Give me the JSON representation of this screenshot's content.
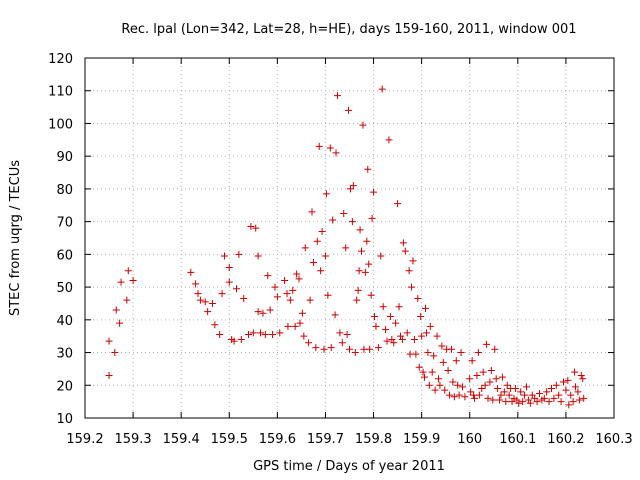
{
  "chart_data": {
    "type": "scatter",
    "title": "Rec. lpal (Lon=342, Lat=28, h=HE), days 159-160, 2011, window 001",
    "xlabel": "GPS time / Days of year 2011",
    "ylabel": "STEC from uqrg / TECUs",
    "xlim": [
      159.2,
      160.3
    ],
    "ylim": [
      10,
      120
    ],
    "xticks": [
      "159.2",
      "159.3",
      "159.4",
      "159.5",
      "159.6",
      "159.7",
      "159.8",
      "159.9",
      "160",
      "160.1",
      "160.2",
      "160.3"
    ],
    "yticks": [
      "10",
      "20",
      "30",
      "40",
      "50",
      "60",
      "70",
      "80",
      "90",
      "100",
      "110",
      "120"
    ],
    "grid": true,
    "marker": "plus",
    "color": "#cc0000",
    "points": [
      [
        159.25,
        23
      ],
      [
        159.25,
        33.5
      ],
      [
        159.262,
        30
      ],
      [
        159.265,
        43
      ],
      [
        159.272,
        39
      ],
      [
        159.275,
        51.5
      ],
      [
        159.287,
        46
      ],
      [
        159.29,
        55
      ],
      [
        159.3,
        52
      ],
      [
        159.42,
        54.5
      ],
      [
        159.43,
        51
      ],
      [
        159.435,
        48
      ],
      [
        159.44,
        46
      ],
      [
        159.45,
        45.5
      ],
      [
        159.455,
        42.5
      ],
      [
        159.465,
        45
      ],
      [
        159.47,
        38.5
      ],
      [
        159.48,
        35.5
      ],
      [
        159.485,
        48
      ],
      [
        159.49,
        59.5
      ],
      [
        159.5,
        56
      ],
      [
        159.5,
        51.5
      ],
      [
        159.505,
        34
      ],
      [
        159.51,
        33.5
      ],
      [
        159.515,
        49.5
      ],
      [
        159.52,
        60
      ],
      [
        159.525,
        34
      ],
      [
        159.53,
        46.5
      ],
      [
        159.54,
        35.5
      ],
      [
        159.545,
        68.5
      ],
      [
        159.55,
        36
      ],
      [
        159.555,
        68
      ],
      [
        159.56,
        59.5
      ],
      [
        159.56,
        42.5
      ],
      [
        159.565,
        36
      ],
      [
        159.57,
        42
      ],
      [
        159.575,
        35.5
      ],
      [
        159.58,
        53.5
      ],
      [
        159.585,
        43
      ],
      [
        159.59,
        35.5
      ],
      [
        159.595,
        50
      ],
      [
        159.6,
        47
      ],
      [
        159.605,
        36
      ],
      [
        159.615,
        52
      ],
      [
        159.62,
        48
      ],
      [
        159.622,
        38
      ],
      [
        159.627,
        46
      ],
      [
        159.632,
        49
      ],
      [
        159.637,
        38
      ],
      [
        159.64,
        54
      ],
      [
        159.645,
        52.5
      ],
      [
        159.647,
        39
      ],
      [
        159.652,
        42
      ],
      [
        159.655,
        35
      ],
      [
        159.658,
        62
      ],
      [
        159.665,
        33
      ],
      [
        159.668,
        46
      ],
      [
        159.672,
        73
      ],
      [
        159.675,
        57.5
      ],
      [
        159.68,
        31.5
      ],
      [
        159.683,
        64
      ],
      [
        159.687,
        93
      ],
      [
        159.69,
        55
      ],
      [
        159.693,
        67
      ],
      [
        159.697,
        31
      ],
      [
        159.7,
        59.5
      ],
      [
        159.702,
        78.5
      ],
      [
        159.705,
        47.5
      ],
      [
        159.71,
        92.5
      ],
      [
        159.712,
        31.5
      ],
      [
        159.715,
        70.5
      ],
      [
        159.72,
        41.5
      ],
      [
        159.722,
        91
      ],
      [
        159.725,
        108.5
      ],
      [
        159.73,
        36
      ],
      [
        159.735,
        33
      ],
      [
        159.738,
        72.5
      ],
      [
        159.742,
        62
      ],
      [
        159.745,
        35.5
      ],
      [
        159.748,
        104
      ],
      [
        159.75,
        31
      ],
      [
        159.752,
        80
      ],
      [
        159.756,
        70
      ],
      [
        159.758,
        81
      ],
      [
        159.762,
        30
      ],
      [
        159.765,
        46
      ],
      [
        159.768,
        49
      ],
      [
        159.77,
        55
      ],
      [
        159.772,
        67.5
      ],
      [
        159.775,
        61
      ],
      [
        159.778,
        99.5
      ],
      [
        159.78,
        31
      ],
      [
        159.783,
        54.5
      ],
      [
        159.786,
        64
      ],
      [
        159.788,
        86
      ],
      [
        159.79,
        57
      ],
      [
        159.792,
        31
      ],
      [
        159.795,
        47.5
      ],
      [
        159.797,
        71
      ],
      [
        159.8,
        79
      ],
      [
        159.802,
        41
      ],
      [
        159.805,
        38
      ],
      [
        159.81,
        31.5
      ],
      [
        159.815,
        59.5
      ],
      [
        159.818,
        110.5
      ],
      [
        159.82,
        44
      ],
      [
        159.825,
        37
      ],
      [
        159.828,
        33.5
      ],
      [
        159.832,
        95
      ],
      [
        159.835,
        41
      ],
      [
        159.838,
        34
      ],
      [
        159.842,
        33
      ],
      [
        159.846,
        39
      ],
      [
        159.85,
        75.5
      ],
      [
        159.853,
        44
      ],
      [
        159.856,
        35
      ],
      [
        159.86,
        34
      ],
      [
        159.862,
        63.5
      ],
      [
        159.866,
        61
      ],
      [
        159.87,
        36
      ],
      [
        159.874,
        55
      ],
      [
        159.876,
        29.5
      ],
      [
        159.879,
        50
      ],
      [
        159.882,
        58
      ],
      [
        159.885,
        34
      ],
      [
        159.888,
        29.5
      ],
      [
        159.892,
        46.5
      ],
      [
        159.895,
        25.5
      ],
      [
        159.898,
        41
      ],
      [
        159.9,
        35
      ],
      [
        159.903,
        24
      ],
      [
        159.906,
        22.5
      ],
      [
        159.908,
        43.5
      ],
      [
        159.91,
        36
      ],
      [
        159.913,
        30
      ],
      [
        159.916,
        20
      ],
      [
        159.918,
        38
      ],
      [
        159.922,
        24
      ],
      [
        159.925,
        29
      ],
      [
        159.928,
        18.5
      ],
      [
        159.932,
        35
      ],
      [
        159.935,
        22
      ],
      [
        159.938,
        20
      ],
      [
        159.942,
        32
      ],
      [
        159.945,
        27
      ],
      [
        159.948,
        18.5
      ],
      [
        159.952,
        31
      ],
      [
        159.955,
        24.5
      ],
      [
        159.958,
        17
      ],
      [
        159.962,
        31
      ],
      [
        159.965,
        21
      ],
      [
        159.968,
        16.5
      ],
      [
        159.972,
        27.5
      ],
      [
        159.975,
        20
      ],
      [
        159.978,
        17
      ],
      [
        159.982,
        30
      ],
      [
        159.985,
        19.5
      ],
      [
        159.99,
        16.5
      ],
      [
        160.0,
        22
      ],
      [
        160.002,
        18
      ],
      [
        160.005,
        27.5
      ],
      [
        160.008,
        17
      ],
      [
        160.01,
        16
      ],
      [
        160.015,
        23
      ],
      [
        160.018,
        30
      ],
      [
        160.02,
        17
      ],
      [
        160.025,
        19
      ],
      [
        160.028,
        24
      ],
      [
        160.032,
        20
      ],
      [
        160.035,
        32.5
      ],
      [
        160.038,
        16
      ],
      [
        160.042,
        21
      ],
      [
        160.045,
        24.5
      ],
      [
        160.048,
        15.5
      ],
      [
        160.052,
        31
      ],
      [
        160.055,
        22
      ],
      [
        160.058,
        19
      ],
      [
        160.062,
        15.5
      ],
      [
        160.065,
        17
      ],
      [
        160.068,
        22.5
      ],
      [
        160.072,
        18
      ],
      [
        160.075,
        15
      ],
      [
        160.078,
        20
      ],
      [
        160.082,
        17
      ],
      [
        160.085,
        19
      ],
      [
        160.088,
        15
      ],
      [
        160.092,
        16
      ],
      [
        160.095,
        19
      ],
      [
        160.098,
        15.5
      ],
      [
        160.102,
        14.5
      ],
      [
        160.106,
        18
      ],
      [
        160.11,
        15
      ],
      [
        160.114,
        17
      ],
      [
        160.118,
        19.5
      ],
      [
        160.122,
        15.5
      ],
      [
        160.126,
        14.5
      ],
      [
        160.13,
        17
      ],
      [
        160.135,
        16
      ],
      [
        160.14,
        15
      ],
      [
        160.145,
        17.5
      ],
      [
        160.15,
        15.5
      ],
      [
        160.155,
        16
      ],
      [
        160.16,
        18
      ],
      [
        160.165,
        15
      ],
      [
        160.17,
        19
      ],
      [
        160.175,
        16
      ],
      [
        160.18,
        20
      ],
      [
        160.185,
        17
      ],
      [
        160.19,
        15
      ],
      [
        160.195,
        21
      ],
      [
        160.2,
        18.5
      ],
      [
        160.204,
        21.5
      ],
      [
        160.206,
        14
      ],
      [
        160.21,
        17
      ],
      [
        160.215,
        15
      ],
      [
        160.218,
        24
      ],
      [
        160.22,
        19.5
      ],
      [
        160.225,
        18
      ],
      [
        160.228,
        15.5
      ],
      [
        160.232,
        23
      ],
      [
        160.235,
        22
      ],
      [
        160.237,
        16
      ]
    ]
  }
}
